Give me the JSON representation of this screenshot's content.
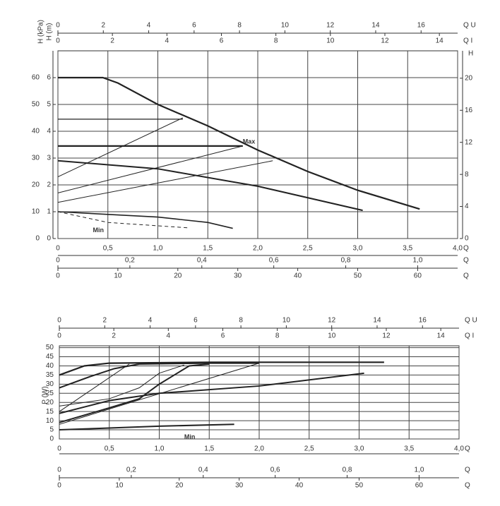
{
  "chart_data": [
    {
      "type": "line",
      "ylabel": "H (kPa)",
      "xlabel": "Q",
      "color": "#222222",
      "grid": true,
      "xlim": [
        0,
        4
      ],
      "xticks": [
        0,
        {
          "value": 0.5,
          "label": "0,5"
        },
        {
          "value": 1,
          "label": "1,0"
        },
        {
          "value": 1.5,
          "label": "1,5"
        },
        {
          "value": 2,
          "label": "2,0"
        },
        {
          "value": 2.5,
          "label": "2,5"
        },
        {
          "value": 3,
          "label": "3,0"
        },
        {
          "value": 3.5,
          "label": "3,5"
        },
        {
          "value": 4,
          "label": "4,0"
        }
      ],
      "ylim": [
        0,
        70
      ],
      "yticks": [
        0,
        10,
        20,
        30,
        40,
        50,
        60
      ],
      "x_axes": [
        {
          "label": "Q U",
          "lim": [
            0,
            17.61
          ],
          "ticks": [
            0,
            2,
            4,
            6,
            8,
            10,
            12,
            14,
            16
          ]
        },
        {
          "label": "Q I",
          "lim": [
            0,
            14.67
          ],
          "ticks": [
            0,
            2,
            4,
            6,
            8,
            10,
            12,
            14
          ]
        },
        {
          "label": "Q",
          "lim": [
            0,
            1.111
          ],
          "ticks": [
            0,
            {
              "value": 0.2,
              "label": "0,2"
            },
            {
              "value": 0.4,
              "label": "0,4"
            },
            {
              "value": 0.6,
              "label": "0,6"
            },
            {
              "value": 0.8,
              "label": "0,8"
            },
            {
              "value": 1,
              "label": "1,0"
            }
          ]
        },
        {
          "label": "Q",
          "lim": [
            0,
            66.67
          ],
          "ticks": [
            0,
            10,
            20,
            30,
            40,
            50,
            60
          ]
        }
      ],
      "y_axes": [
        {
          "label": "H (m)",
          "lim": [
            0,
            7
          ],
          "ticks": [
            0,
            1,
            2,
            3,
            4,
            5,
            6
          ]
        },
        {
          "label": "H",
          "lim": [
            0,
            23.42
          ],
          "ticks": [
            0,
            4,
            8,
            12,
            16,
            20
          ]
        }
      ],
      "series": [
        {
          "width": 2.2,
          "x": [
            0,
            0.45,
            0.6,
            1.0,
            1.5,
            2.0,
            2.5,
            3.0,
            3.62
          ],
          "values": [
            60,
            60,
            58,
            50,
            42,
            33,
            25,
            18,
            11
          ]
        },
        {
          "width": 1.2,
          "x": [
            0,
            1.25
          ],
          "values": [
            44.5,
            44.5
          ]
        },
        {
          "width": 1,
          "x": [
            0,
            1.25
          ],
          "values": [
            23,
            45
          ]
        },
        {
          "width": 2.2,
          "x": [
            0,
            1.85
          ],
          "values": [
            34.5,
            34.5
          ]
        },
        {
          "width": 1,
          "x": [
            0,
            1.85
          ],
          "values": [
            17,
            34.5
          ]
        },
        {
          "width": 1,
          "x": [
            0,
            2.15
          ],
          "values": [
            13.5,
            29
          ]
        },
        {
          "width": 2,
          "x": [
            0,
            1.0,
            2.0,
            3.05
          ],
          "values": [
            29,
            26,
            19.5,
            10.5
          ]
        },
        {
          "width": 1.6,
          "x": [
            0,
            0.5,
            1.0,
            1.5,
            1.75
          ],
          "values": [
            10,
            9,
            8,
            6,
            3.8
          ]
        },
        {
          "width": 1,
          "dash": true,
          "x": [
            0,
            0.5,
            1.3
          ],
          "values": [
            10,
            6,
            4
          ]
        }
      ],
      "annotations": [
        {
          "text": "Max",
          "x": 1.85,
          "y": 36
        },
        {
          "text": "Min",
          "x": 0.35,
          "y": 3
        }
      ]
    },
    {
      "type": "line",
      "ylabel": "P (W)",
      "xlabel": "Q",
      "color": "#222222",
      "grid": true,
      "xlim": [
        0,
        4
      ],
      "xticks": [
        0,
        {
          "value": 0.5,
          "label": "0,5"
        },
        {
          "value": 1,
          "label": "1,0"
        },
        {
          "value": 1.5,
          "label": "1,5"
        },
        {
          "value": 2,
          "label": "2,0"
        },
        {
          "value": 2.5,
          "label": "2,5"
        },
        {
          "value": 3,
          "label": "3,0"
        },
        {
          "value": 3.5,
          "label": "3,5"
        },
        {
          "value": 4,
          "label": "4,0"
        }
      ],
      "ylim": [
        0,
        51
      ],
      "yticks": [
        0,
        5,
        10,
        15,
        20,
        25,
        30,
        35,
        40,
        45,
        50
      ],
      "x_axes": [
        {
          "label": "Q U",
          "lim": [
            0,
            17.61
          ],
          "ticks": [
            0,
            2,
            4,
            6,
            8,
            10,
            12,
            14,
            16
          ]
        },
        {
          "label": "Q I",
          "lim": [
            0,
            14.67
          ],
          "ticks": [
            0,
            2,
            4,
            6,
            8,
            10,
            12,
            14
          ]
        },
        {
          "label": "Q",
          "lim": [
            0,
            1.111
          ],
          "ticks": [
            0,
            {
              "value": 0.2,
              "label": "0,2"
            },
            {
              "value": 0.4,
              "label": "0,4"
            },
            {
              "value": 0.6,
              "label": "0,6"
            },
            {
              "value": 0.8,
              "label": "0,8"
            },
            {
              "value": 1,
              "label": "1,0"
            }
          ]
        },
        {
          "label": "Q",
          "lim": [
            0,
            66.67
          ],
          "ticks": [
            0,
            10,
            20,
            30,
            40,
            50,
            60
          ]
        }
      ],
      "y_axes": [],
      "series": [
        {
          "width": 2.2,
          "x": [
            0,
            0.25,
            0.5,
            1.5,
            3.25
          ],
          "values": [
            35,
            40,
            41.5,
            42,
            42
          ]
        },
        {
          "width": 2,
          "x": [
            0,
            0.3,
            0.55,
            0.8,
            1.5,
            2.0
          ],
          "values": [
            28,
            34,
            38.5,
            41,
            41.5,
            41.5
          ]
        },
        {
          "width": 2,
          "x": [
            0,
            0.5,
            0.8,
            1.0,
            1.3,
            1.5
          ],
          "values": [
            9,
            17,
            22,
            30,
            40,
            41
          ]
        },
        {
          "width": 2,
          "x": [
            0,
            0.5,
            1.0,
            2.0,
            3.05
          ],
          "values": [
            14,
            21,
            25,
            29,
            36
          ]
        },
        {
          "width": 2,
          "x": [
            0,
            0.5,
            1.0,
            1.75
          ],
          "values": [
            5,
            6,
            7,
            8
          ]
        },
        {
          "width": 1,
          "x": [
            0,
            0.5,
            0.8,
            1.0,
            1.25
          ],
          "values": [
            18,
            22,
            28,
            36,
            40.5
          ]
        },
        {
          "width": 1,
          "x": [
            0,
            2.0
          ],
          "values": [
            8,
            41.5
          ]
        },
        {
          "width": 1,
          "x": [
            0,
            0.7
          ],
          "values": [
            15,
            41
          ]
        }
      ],
      "annotations": [
        {
          "text": "Min",
          "x": 1.25,
          "y": 1
        }
      ]
    }
  ]
}
